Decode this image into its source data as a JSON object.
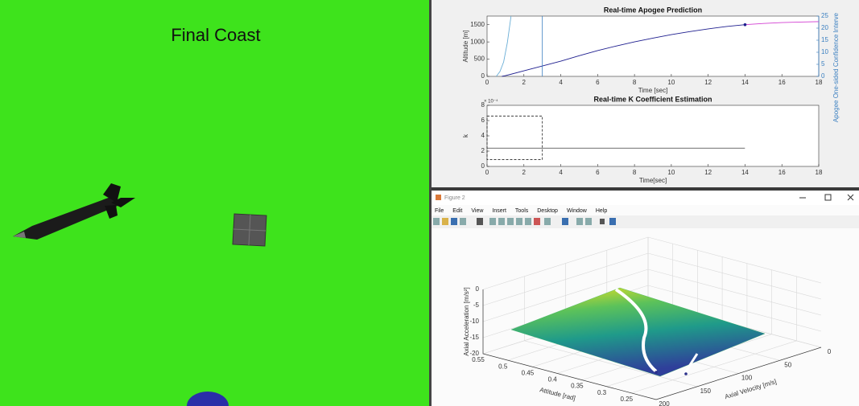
{
  "scene": {
    "title": "Final Coast"
  },
  "window": {
    "title": "Figure 2",
    "menu": [
      "File",
      "Edit",
      "View",
      "Insert",
      "Tools",
      "Desktop",
      "Window",
      "Help"
    ]
  },
  "chart_data": [
    {
      "type": "line",
      "title": "Real-time Apogee Prediction",
      "xlabel": "Time [sec]",
      "ylabel": "Altitude [m]",
      "y2label": "Apogee One-sided Confidence Interve",
      "xlim": [
        0,
        18
      ],
      "xticks": [
        0,
        2,
        4,
        6,
        8,
        10,
        12,
        14,
        16,
        18
      ],
      "ylim": [
        0,
        1750
      ],
      "yticks": [
        0,
        500,
        1000,
        1500
      ],
      "y2lim": [
        0,
        25
      ],
      "y2ticks": [
        0,
        5,
        10,
        15,
        20,
        25
      ],
      "y2color": "#3a7fc0",
      "series": [
        {
          "color": "#1f1f8f",
          "x": [
            0.8,
            1,
            2,
            3,
            4,
            5,
            6,
            7,
            8,
            9,
            10,
            11,
            12,
            13,
            14
          ],
          "values": [
            0,
            20,
            160,
            300,
            440,
            600,
            750,
            880,
            1000,
            1110,
            1210,
            1300,
            1380,
            1450,
            1500
          ]
        },
        {
          "color": "#d23fd2",
          "x": [
            14,
            15,
            16,
            17,
            18
          ],
          "values": [
            1500,
            1535,
            1560,
            1578,
            1590
          ]
        },
        {
          "color": "#6aaed6",
          "axis": "y2",
          "x": [
            0.5,
            0.7,
            0.9,
            1.1,
            1.3
          ],
          "values": [
            0,
            2,
            6,
            14,
            25
          ]
        }
      ],
      "vlines": [
        {
          "x": 3,
          "color": "#3a7fc0"
        }
      ],
      "markers": [
        {
          "x": 14,
          "y": 1500,
          "color": "#1f1f8f"
        }
      ]
    },
    {
      "type": "line",
      "title": "Real-time K Coefficient Estimation",
      "xlabel": "Time[sec]",
      "ylabel": "k",
      "y_multiplier": "× 10⁻⁴",
      "xlim": [
        0,
        18
      ],
      "xticks": [
        0,
        2,
        4,
        6,
        8,
        10,
        12,
        14,
        16,
        18
      ],
      "ylim": [
        0,
        8
      ],
      "yticks": [
        0,
        2,
        4,
        6,
        8
      ],
      "series": [
        {
          "color": "#222222",
          "x": [
            0,
            14
          ],
          "values": [
            2.4,
            2.4
          ]
        }
      ],
      "boxes": [
        {
          "x": [
            0,
            3
          ],
          "y": [
            0.9,
            6.6
          ],
          "color": "#222222"
        }
      ]
    },
    {
      "type": "surface",
      "xlabel": "Attitude [rad]",
      "ylabel": "Axial Velocity [m/s]",
      "zlabel": "Axial Acceleration [m/s²]",
      "xlim": [
        0.2,
        0.55
      ],
      "xticks": [
        0.25,
        0.3,
        0.35,
        0.4,
        0.45,
        0.5,
        0.55
      ],
      "ylim": [
        0,
        200
      ],
      "yticks": [
        0,
        50,
        100,
        150,
        200
      ],
      "zlim": [
        -20,
        0
      ],
      "zticks": [
        -20,
        -15,
        -10,
        -5,
        0
      ]
    }
  ]
}
